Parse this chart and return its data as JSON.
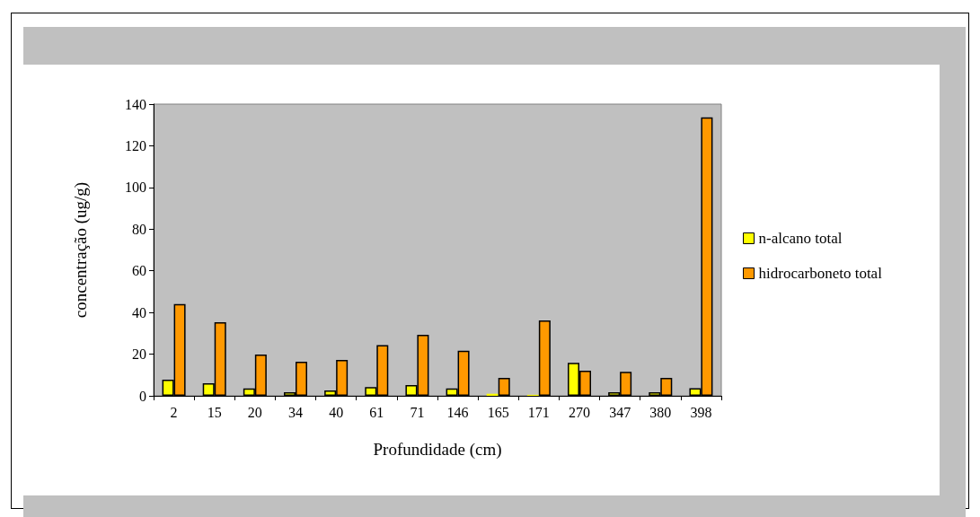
{
  "chart_data": {
    "type": "bar",
    "xlabel": "Profundidade (cm)",
    "ylabel": "concentração (ug/g)",
    "categories": [
      "2",
      "15",
      "20",
      "34",
      "40",
      "61",
      "71",
      "146",
      "165",
      "171",
      "270",
      "347",
      "380",
      "398"
    ],
    "series": [
      {
        "name": "n-alcano total",
        "color": "#ffff00",
        "values": [
          7.8,
          6.0,
          3.6,
          1.7,
          2.6,
          4.2,
          5.2,
          3.6,
          1.0,
          0.5,
          15.8,
          1.7,
          1.7,
          3.7
        ]
      },
      {
        "name": "hidrocarboneto total",
        "color": "#ff9900",
        "values": [
          44.1,
          35.3,
          19.8,
          16.4,
          17.2,
          24.3,
          29.3,
          21.6,
          8.6,
          36.2,
          12.1,
          11.5,
          8.6,
          133.6
        ]
      }
    ],
    "ylim": [
      0,
      140
    ],
    "yticks": [
      0,
      20,
      40,
      60,
      80,
      100,
      120,
      140
    ],
    "legend": "right"
  }
}
